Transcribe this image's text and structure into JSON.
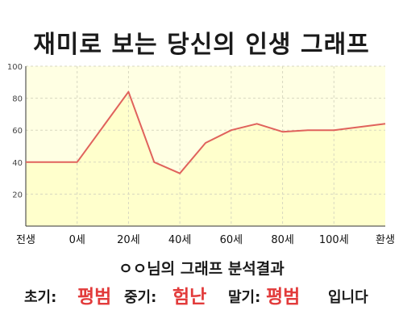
{
  "title": "재미로 보는 당신의 인생 그래프",
  "chart_data": {
    "type": "area",
    "title": "재미로 보는 당신의 인생 그래프",
    "x": [
      -20,
      0,
      20,
      30,
      40,
      50,
      60,
      70,
      80,
      90,
      100,
      120
    ],
    "y": [
      40,
      40,
      84,
      40,
      33,
      52,
      60,
      64,
      59,
      60,
      60,
      64
    ],
    "xticks": [
      {
        "value": -20,
        "label": "전생"
      },
      {
        "value": 0,
        "label": "0세"
      },
      {
        "value": 20,
        "label": "20세"
      },
      {
        "value": 40,
        "label": "40세"
      },
      {
        "value": 60,
        "label": "60세"
      },
      {
        "value": 80,
        "label": "80세"
      },
      {
        "value": 100,
        "label": "100세"
      },
      {
        "value": 120,
        "label": "환생"
      }
    ],
    "yticks": [
      20,
      40,
      60,
      80,
      100
    ],
    "ylim": [
      0,
      100
    ],
    "xlim": [
      -20,
      120
    ],
    "grid": true,
    "colors": {
      "line": "#e0625c",
      "fill": "#ffffcc",
      "grid": "#d8d8c0",
      "highlight": "#e23b3b"
    }
  },
  "summary": {
    "heading": "ㅇㅇ님의 그래프 분석결과",
    "early_label": "초기:",
    "early_value": "평범",
    "middle_label": "중기:",
    "middle_value": "험난",
    "late_label": "말기:",
    "late_value": "평범",
    "ending": "입니다"
  }
}
